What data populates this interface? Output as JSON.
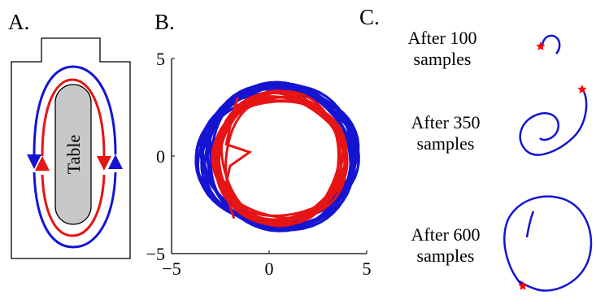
{
  "panels": {
    "a": {
      "label": "A.",
      "table_label": "Table",
      "colors": {
        "outer_path": "#1414d2",
        "inner_path": "#e61414",
        "table_fill": "#c8c8c8"
      }
    },
    "b": {
      "label": "B."
    },
    "c": {
      "label": "C.",
      "captions": [
        {
          "line1": "After 100",
          "line2": "samples"
        },
        {
          "line1": "After 350",
          "line2": "samples"
        },
        {
          "line1": "After 600",
          "line2": "samples"
        }
      ]
    }
  },
  "chart_data": {
    "type": "line",
    "title": "",
    "xlabel": "",
    "ylabel": "",
    "xlim": [
      -5,
      5
    ],
    "ylim": [
      -5,
      5
    ],
    "xticks": [
      "−5",
      "0",
      "5"
    ],
    "yticks": [
      "−5",
      "0",
      "5"
    ],
    "grid": false,
    "series": [
      {
        "color": "#1414d2",
        "shape": "loops",
        "loop_count": 12,
        "center": [
          0.5,
          0.0
        ],
        "rx": 3.9,
        "ry": 3.55
      },
      {
        "color": "#e61414",
        "shape": "loops",
        "loop_count": 10,
        "center": [
          0.6,
          -0.1
        ],
        "rx": 3.2,
        "ry": 3.2,
        "inner_path": [
          [
            -1.6,
            3.0
          ],
          [
            -1.8,
            2.4
          ],
          [
            -2.0,
            1.5
          ],
          [
            -2.2,
            0.6
          ],
          [
            -1.0,
            0.2
          ],
          [
            -2.0,
            -0.5
          ],
          [
            -2.2,
            -1.4
          ],
          [
            -2.0,
            -2.6
          ],
          [
            -1.8,
            -3.2
          ]
        ]
      }
    ],
    "star_color": "#ff0000"
  }
}
